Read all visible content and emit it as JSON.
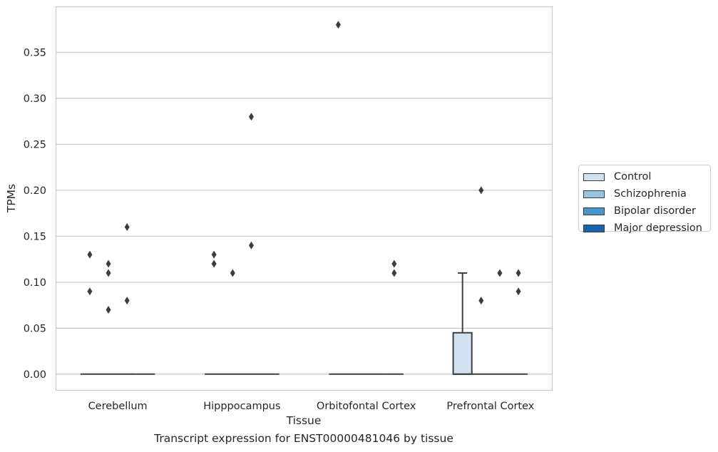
{
  "chart_data": {
    "type": "box",
    "xlabel": "Tissue",
    "ylabel": "TPMs",
    "ylim": [
      -0.018,
      0.4
    ],
    "yticks": [
      0.0,
      0.05,
      0.1,
      0.15,
      0.2,
      0.25,
      0.3,
      0.35
    ],
    "ytick_labels": [
      "0.00",
      "0.05",
      "0.10",
      "0.15",
      "0.20",
      "0.25",
      "0.30",
      "0.35"
    ],
    "grid": "horizontal",
    "legend_position": "right",
    "categories": [
      "Cerebellum",
      "Hipppocampus",
      "Orbitofontal Cortex",
      "Prefrontal Cortex"
    ],
    "series": [
      {
        "name": "Control",
        "color": "#d0e1f2",
        "boxes": [
          {
            "q1": 0,
            "median": 0,
            "q3": 0,
            "whisker_low": 0,
            "whisker_high": 0,
            "outliers": [
              0.13,
              0.09
            ]
          },
          {
            "q1": 0,
            "median": 0,
            "q3": 0,
            "whisker_low": 0,
            "whisker_high": 0,
            "outliers": [
              0.13,
              0.12
            ]
          },
          {
            "q1": 0,
            "median": 0,
            "q3": 0,
            "whisker_low": 0,
            "whisker_high": 0,
            "outliers": [
              0.38
            ]
          },
          {
            "q1": 0,
            "median": 0,
            "q3": 0.045,
            "whisker_low": 0,
            "whisker_high": 0.11,
            "outliers": []
          }
        ]
      },
      {
        "name": "Schizophrenia",
        "color": "#94c4df",
        "boxes": [
          {
            "q1": 0,
            "median": 0,
            "q3": 0,
            "whisker_low": 0,
            "whisker_high": 0,
            "outliers": [
              0.12,
              0.11,
              0.07
            ]
          },
          {
            "q1": 0,
            "median": 0,
            "q3": 0,
            "whisker_low": 0,
            "whisker_high": 0,
            "outliers": [
              0.11
            ]
          },
          {
            "q1": 0,
            "median": 0,
            "q3": 0,
            "whisker_low": 0,
            "whisker_high": 0,
            "outliers": []
          },
          {
            "q1": 0,
            "median": 0,
            "q3": 0,
            "whisker_low": 0,
            "whisker_high": 0,
            "outliers": [
              0.2,
              0.08
            ]
          }
        ]
      },
      {
        "name": "Bipolar disorder",
        "color": "#4a98c9",
        "boxes": [
          {
            "q1": 0,
            "median": 0,
            "q3": 0,
            "whisker_low": 0,
            "whisker_high": 0,
            "outliers": [
              0.16,
              0.08
            ]
          },
          {
            "q1": 0,
            "median": 0,
            "q3": 0,
            "whisker_low": 0,
            "whisker_high": 0,
            "outliers": [
              0.28,
              0.14
            ]
          },
          {
            "q1": 0,
            "median": 0,
            "q3": 0,
            "whisker_low": 0,
            "whisker_high": 0,
            "outliers": []
          },
          {
            "q1": 0,
            "median": 0,
            "q3": 0,
            "whisker_low": 0,
            "whisker_high": 0,
            "outliers": [
              0.11
            ]
          }
        ]
      },
      {
        "name": "Major depression",
        "color": "#1764ab",
        "boxes": [
          {
            "q1": 0,
            "median": 0,
            "q3": 0,
            "whisker_low": 0,
            "whisker_high": 0,
            "outliers": []
          },
          {
            "q1": 0,
            "median": 0,
            "q3": 0,
            "whisker_low": 0,
            "whisker_high": 0,
            "outliers": []
          },
          {
            "q1": 0,
            "median": 0,
            "q3": 0,
            "whisker_low": 0,
            "whisker_high": 0,
            "outliers": [
              0.12,
              0.11
            ]
          },
          {
            "q1": 0,
            "median": 0,
            "q3": 0,
            "whisker_low": 0,
            "whisker_high": 0,
            "outliers": [
              0.11,
              0.09
            ]
          }
        ]
      }
    ],
    "caption": "Transcript expression for ENST00000481046 by tissue"
  }
}
